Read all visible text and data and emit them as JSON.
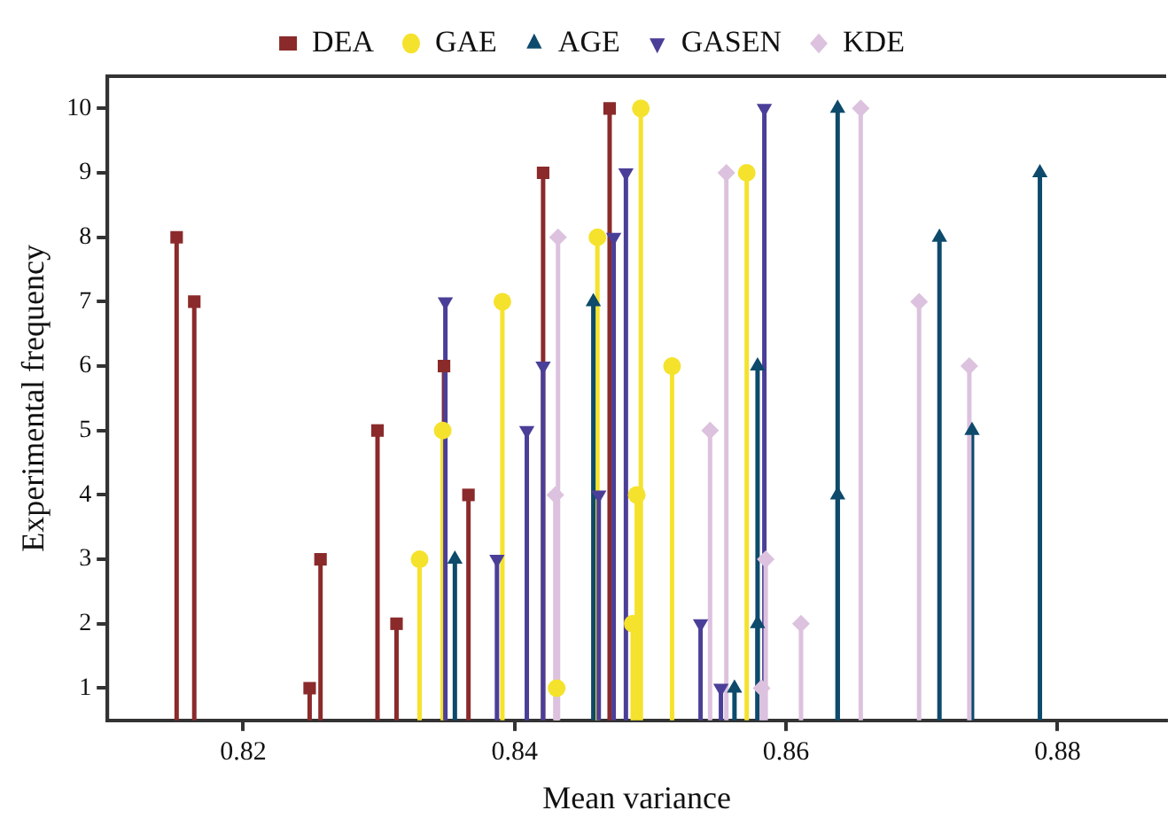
{
  "chart_data": {
    "type": "lollipop",
    "xlabel": "Mean variance",
    "ylabel": "Experimental frequency",
    "xlim": [
      0.81,
      0.888
    ],
    "xticks": [
      0.82,
      0.84,
      0.86,
      0.88
    ],
    "ylim": [
      0.5,
      10.5
    ],
    "yticks": [
      1,
      2,
      3,
      4,
      5,
      6,
      7,
      8,
      9,
      10
    ],
    "grid": false,
    "legend": "top",
    "series": [
      {
        "name": "DEA",
        "color": "#8b2a2a",
        "marker": "square",
        "x": [
          0.8151,
          0.8164,
          0.8249,
          0.8257,
          0.8299,
          0.8313,
          0.8348,
          0.8366,
          0.8421,
          0.847
        ],
        "values": [
          8,
          7,
          1,
          3,
          5,
          2,
          6,
          4,
          9,
          10
        ]
      },
      {
        "name": "GAE",
        "color": "#f5e22c",
        "marker": "circle",
        "x": [
          0.833,
          0.8347,
          0.8391,
          0.8431,
          0.8461,
          0.8487,
          0.849,
          0.8493,
          0.8516,
          0.8571
        ],
        "values": [
          3,
          5,
          7,
          1,
          8,
          2,
          4,
          10,
          6,
          9
        ]
      },
      {
        "name": "AGE",
        "color": "#0d4a6b",
        "marker": "triangle",
        "x": [
          0.8356,
          0.8458,
          0.8562,
          0.8579,
          0.8579,
          0.8638,
          0.8638,
          0.8713,
          0.8737,
          0.8787
        ],
        "values": [
          3,
          7,
          1,
          2,
          6,
          4,
          10,
          8,
          5,
          9
        ]
      },
      {
        "name": "GASEN",
        "color": "#4a3f98",
        "marker": "triangle-down",
        "x": [
          0.8349,
          0.8387,
          0.8409,
          0.8421,
          0.8462,
          0.8473,
          0.8482,
          0.8537,
          0.8552,
          0.8584
        ],
        "values": [
          7,
          3,
          5,
          6,
          4,
          8,
          9,
          2,
          1,
          10
        ]
      },
      {
        "name": "KDE",
        "color": "#dcc2de",
        "marker": "diamond",
        "x": [
          0.843,
          0.8432,
          0.8544,
          0.8556,
          0.8582,
          0.8585,
          0.8611,
          0.8655,
          0.8698,
          0.8735
        ],
        "values": [
          4,
          8,
          5,
          9,
          1,
          3,
          2,
          10,
          7,
          6
        ]
      }
    ]
  }
}
